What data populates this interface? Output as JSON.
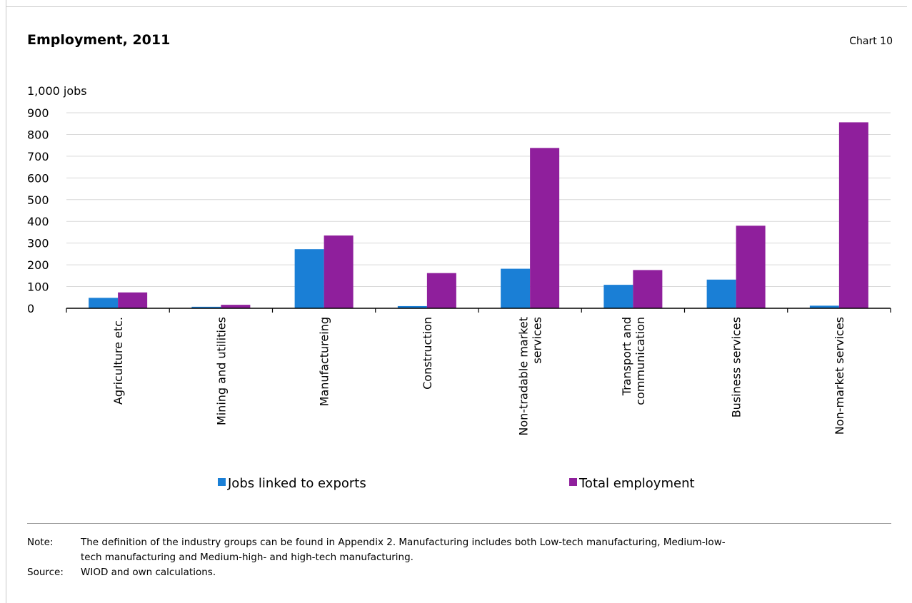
{
  "header": {
    "title": "Employment, 2011",
    "chart_number": "Chart 10"
  },
  "chart_data": {
    "type": "bar",
    "title": "Employment, 2011",
    "ylabel": "1,000 jobs",
    "xlabel": "",
    "ylim": [
      0,
      900
    ],
    "yticks": [
      0,
      100,
      200,
      300,
      400,
      500,
      600,
      700,
      800,
      900
    ],
    "ytick_labels": [
      "0",
      "100",
      "200",
      "300",
      "400",
      "500",
      "600",
      "700",
      "800",
      "900"
    ],
    "grid": true,
    "legend_position": "bottom",
    "categories": [
      [
        "Agriculture etc."
      ],
      [
        "Mining and utilities"
      ],
      [
        "Manufactureing"
      ],
      [
        "Construction"
      ],
      [
        "Non-tradable market",
        "services"
      ],
      [
        "Transport and",
        "communication"
      ],
      [
        "Business services"
      ],
      [
        "Non-market services"
      ]
    ],
    "series": [
      {
        "name": "Jobs linked to exports",
        "color": "#1a7fd6",
        "values": [
          48,
          7,
          272,
          10,
          182,
          108,
          132,
          12
        ]
      },
      {
        "name": "Total employment",
        "color": "#8f1f9c",
        "values": [
          73,
          16,
          335,
          162,
          738,
          176,
          380,
          856
        ]
      }
    ]
  },
  "footer": {
    "note_label": "Note:",
    "note_line1": "The definition of the industry groups can be found in Appendix 2. Manufacturing includes both Low-tech manufacturing, Medium-low-",
    "note_line2": "tech manufacturing and Medium-high- and high-tech manufacturing.",
    "source_label": "Source:",
    "source_text": "WIOD and own calculations."
  }
}
